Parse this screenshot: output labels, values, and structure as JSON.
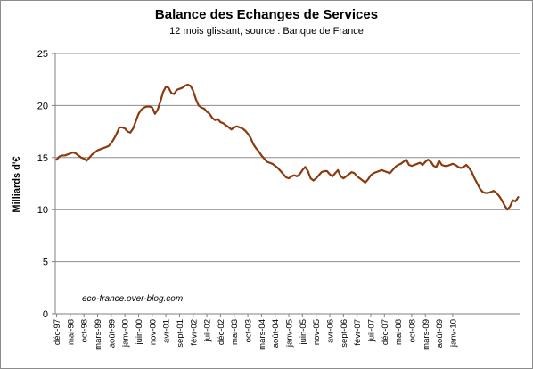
{
  "chart_data": {
    "type": "line",
    "title": "Balance des Echanges de Services",
    "subtitle": "12 mois glissant, source : Banque de France",
    "ylabel": "Milliards d'€",
    "xlabel": "",
    "ylim": [
      0,
      25
    ],
    "yticks": [
      0,
      5,
      10,
      15,
      20,
      25
    ],
    "grid": true,
    "legend": "none",
    "colors": {
      "line": "#8b3a0e",
      "grid": "#8c8c8c",
      "axis": "#808080"
    },
    "watermark": "eco-france.over-blog.com",
    "x_tick_labels": [
      "déc-97",
      "mai-98",
      "oct-98",
      "mars-99",
      "août-99",
      "janv-00",
      "juin-00",
      "nov-00",
      "avr-01",
      "sept-01",
      "févr-02",
      "juil-02",
      "déc-02",
      "mai-03",
      "oct-03",
      "mars-04",
      "août-04",
      "janv-05",
      "juin-05",
      "nov-05",
      "avr-06",
      "sept-06",
      "févr-07",
      "juil-07",
      "déc-07",
      "mai-08",
      "oct-08",
      "mars-09",
      "août-09",
      "janv-10"
    ],
    "series": [
      {
        "values": [
          14.8,
          15.1,
          15.2,
          15.2,
          15.3,
          15.4,
          15.5,
          15.4,
          15.2,
          15.0,
          14.9,
          14.7,
          15.0,
          15.3,
          15.5,
          15.7,
          15.8,
          15.9,
          16.0,
          16.1,
          16.4,
          16.8,
          17.3,
          17.9,
          17.9,
          17.8,
          17.5,
          17.4,
          17.8,
          18.5,
          19.2,
          19.6,
          19.8,
          19.9,
          19.9,
          19.8,
          19.2,
          19.6,
          20.4,
          21.3,
          21.8,
          21.7,
          21.2,
          21.1,
          21.5,
          21.6,
          21.7,
          21.9,
          22.0,
          21.9,
          21.4,
          20.6,
          20.0,
          19.8,
          19.7,
          19.4,
          19.2,
          18.8,
          18.6,
          18.7,
          18.4,
          18.3,
          18.1,
          17.9,
          17.7,
          17.9,
          18.0,
          17.9,
          17.8,
          17.6,
          17.3,
          16.9,
          16.3,
          15.9,
          15.6,
          15.2,
          14.9,
          14.6,
          14.5,
          14.4,
          14.2,
          14.0,
          13.7,
          13.4,
          13.1,
          13.0,
          13.2,
          13.3,
          13.2,
          13.4,
          13.8,
          14.1,
          13.7,
          13.0,
          12.8,
          13.0,
          13.3,
          13.6,
          13.7,
          13.7,
          13.4,
          13.2,
          13.5,
          13.8,
          13.2,
          13.0,
          13.2,
          13.4,
          13.6,
          13.5,
          13.2,
          13.0,
          12.8,
          12.6,
          12.9,
          13.3,
          13.5,
          13.6,
          13.7,
          13.8,
          13.7,
          13.6,
          13.5,
          13.8,
          14.1,
          14.3,
          14.4,
          14.6,
          14.8,
          14.3,
          14.2,
          14.3,
          14.4,
          14.5,
          14.3,
          14.6,
          14.8,
          14.6,
          14.2,
          14.1,
          14.7,
          14.3,
          14.2,
          14.2,
          14.3,
          14.4,
          14.3,
          14.1,
          14.0,
          14.1,
          14.3,
          14.0,
          13.6,
          13.0,
          12.5,
          12.0,
          11.7,
          11.6,
          11.6,
          11.7,
          11.8,
          11.6,
          11.3,
          10.9,
          10.4,
          10.0,
          10.3,
          10.9,
          10.8,
          11.2
        ]
      }
    ]
  }
}
